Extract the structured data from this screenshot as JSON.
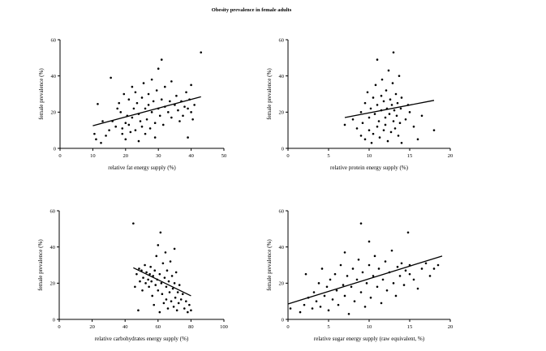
{
  "figure_title": "Obesity prevalence in female adults",
  "chart_data": [
    {
      "type": "scatter",
      "xlabel": "relative fat energy supply (%)",
      "ylabel": "female prevalence (%)",
      "xlim": [
        0,
        50
      ],
      "ylim": [
        0,
        60
      ],
      "xticks": [
        0,
        10,
        20,
        30,
        40,
        50
      ],
      "yticks": [
        0,
        20,
        40,
        60
      ],
      "fit_line": {
        "x": [
          10,
          43
        ],
        "y": [
          12.5,
          28.5
        ]
      },
      "points": [
        [
          10.5,
          8
        ],
        [
          11,
          5
        ],
        [
          11.5,
          24.5
        ],
        [
          12.5,
          3
        ],
        [
          13,
          15
        ],
        [
          14,
          7
        ],
        [
          15,
          10
        ],
        [
          15.5,
          39
        ],
        [
          16,
          15
        ],
        [
          17,
          12
        ],
        [
          17.5,
          22
        ],
        [
          18,
          25
        ],
        [
          18.5,
          20
        ],
        [
          19,
          11
        ],
        [
          19,
          8
        ],
        [
          19.5,
          30
        ],
        [
          20,
          14
        ],
        [
          20,
          5
        ],
        [
          20.5,
          18
        ],
        [
          21,
          13
        ],
        [
          21,
          27
        ],
        [
          21.5,
          9
        ],
        [
          22,
          17
        ],
        [
          22,
          34
        ],
        [
          22.5,
          22
        ],
        [
          23,
          10
        ],
        [
          23,
          31
        ],
        [
          23.5,
          25
        ],
        [
          24,
          19
        ],
        [
          24,
          4
        ],
        [
          24.5,
          15
        ],
        [
          25,
          28
        ],
        [
          25,
          12
        ],
        [
          25.5,
          36
        ],
        [
          26,
          22
        ],
        [
          26,
          8
        ],
        [
          26.5,
          16
        ],
        [
          27,
          30
        ],
        [
          27,
          24
        ],
        [
          27.5,
          11
        ],
        [
          28,
          20
        ],
        [
          28,
          38
        ],
        [
          28.5,
          26
        ],
        [
          29,
          14
        ],
        [
          29,
          6
        ],
        [
          29.5,
          32
        ],
        [
          30,
          22
        ],
        [
          30,
          44
        ],
        [
          30.5,
          18
        ],
        [
          31,
          27
        ],
        [
          31,
          49
        ],
        [
          31.5,
          13
        ],
        [
          32,
          23
        ],
        [
          32,
          34
        ],
        [
          33,
          20
        ],
        [
          33.5,
          26
        ],
        [
          34,
          17
        ],
        [
          34,
          37
        ],
        [
          35,
          24
        ],
        [
          35.5,
          29
        ],
        [
          36,
          21
        ],
        [
          36.5,
          15
        ],
        [
          37,
          26
        ],
        [
          37.5,
          18
        ],
        [
          38,
          23
        ],
        [
          38.5,
          31
        ],
        [
          39,
          22
        ],
        [
          39,
          6
        ],
        [
          39.5,
          27
        ],
        [
          40,
          20
        ],
        [
          40,
          35
        ],
        [
          40.5,
          16
        ],
        [
          41,
          24
        ],
        [
          43,
          53
        ]
      ]
    },
    {
      "type": "scatter",
      "xlabel": "relative protein energy supply (%)",
      "ylabel": "female prevalence (%)",
      "xlim": [
        0,
        20
      ],
      "ylim": [
        0,
        60
      ],
      "xticks": [
        0,
        5,
        10,
        15,
        20
      ],
      "yticks": [
        0,
        20,
        40,
        60
      ],
      "fit_line": {
        "x": [
          7,
          18
        ],
        "y": [
          17,
          26.5
        ]
      },
      "points": [
        [
          7,
          13
        ],
        [
          8,
          16
        ],
        [
          8.5,
          11
        ],
        [
          9,
          7
        ],
        [
          9,
          20
        ],
        [
          9.2,
          14
        ],
        [
          9.5,
          5
        ],
        [
          9.5,
          25
        ],
        [
          9.8,
          31
        ],
        [
          10,
          10
        ],
        [
          10,
          17
        ],
        [
          10.2,
          22
        ],
        [
          10.3,
          3
        ],
        [
          10.5,
          28
        ],
        [
          10.5,
          8
        ],
        [
          10.7,
          19
        ],
        [
          10.8,
          35
        ],
        [
          11,
          12
        ],
        [
          11,
          24
        ],
        [
          11,
          49
        ],
        [
          11.2,
          15
        ],
        [
          11.3,
          6
        ],
        [
          11.5,
          21
        ],
        [
          11.5,
          29
        ],
        [
          11.6,
          38
        ],
        [
          11.8,
          10
        ],
        [
          11.8,
          26
        ],
        [
          12,
          17
        ],
        [
          12,
          13
        ],
        [
          12.1,
          32
        ],
        [
          12.2,
          22
        ],
        [
          12.3,
          4
        ],
        [
          12.4,
          43
        ],
        [
          12.5,
          19
        ],
        [
          12.6,
          27
        ],
        [
          12.7,
          9
        ],
        [
          12.8,
          24
        ],
        [
          12.9,
          36
        ],
        [
          13,
          15
        ],
        [
          13,
          53
        ],
        [
          13.1,
          21
        ],
        [
          13.2,
          11
        ],
        [
          13.3,
          30
        ],
        [
          13.4,
          18
        ],
        [
          13.5,
          25
        ],
        [
          13.6,
          7
        ],
        [
          13.7,
          40
        ],
        [
          13.8,
          14
        ],
        [
          13.9,
          22
        ],
        [
          14,
          28
        ],
        [
          14,
          3
        ],
        [
          14.5,
          16
        ],
        [
          14.8,
          24
        ],
        [
          15,
          20
        ],
        [
          15.5,
          12
        ],
        [
          16,
          5
        ],
        [
          16.5,
          18
        ],
        [
          18,
          10
        ]
      ]
    },
    {
      "type": "scatter",
      "xlabel": "relative carbohydrates  energy supply (%)",
      "ylabel": "female prevalence (%)",
      "xlim": [
        0,
        100
      ],
      "ylim": [
        0,
        60
      ],
      "xticks": [
        0,
        20,
        40,
        60,
        80,
        100
      ],
      "yticks": [
        0,
        20,
        40,
        60
      ],
      "fit_line": {
        "x": [
          45,
          80
        ],
        "y": [
          28.5,
          13
        ]
      },
      "points": [
        [
          45,
          53
        ],
        [
          46,
          18
        ],
        [
          47,
          25
        ],
        [
          48,
          5
        ],
        [
          48.5,
          28
        ],
        [
          49,
          21
        ],
        [
          50,
          27
        ],
        [
          50.5,
          16
        ],
        [
          51,
          23
        ],
        [
          52,
          30
        ],
        [
          52.5,
          20
        ],
        [
          53,
          26
        ],
        [
          54,
          22
        ],
        [
          54.5,
          18
        ],
        [
          55,
          25
        ],
        [
          55.5,
          29
        ],
        [
          56,
          21
        ],
        [
          56.5,
          13
        ],
        [
          57,
          24
        ],
        [
          57.5,
          8
        ],
        [
          58,
          27
        ],
        [
          58.5,
          19
        ],
        [
          59,
          35
        ],
        [
          59.5,
          22
        ],
        [
          60,
          16
        ],
        [
          60,
          41
        ],
        [
          61,
          25
        ],
        [
          61,
          4
        ],
        [
          61.5,
          48
        ],
        [
          62,
          20
        ],
        [
          62.5,
          14
        ],
        [
          63,
          31
        ],
        [
          63.5,
          9
        ],
        [
          64,
          23
        ],
        [
          64.5,
          37
        ],
        [
          65,
          18
        ],
        [
          65,
          11
        ],
        [
          65.5,
          27
        ],
        [
          66,
          6
        ],
        [
          66.5,
          21
        ],
        [
          67,
          15
        ],
        [
          67.5,
          32
        ],
        [
          68,
          10
        ],
        [
          68.5,
          24
        ],
        [
          69,
          17
        ],
        [
          69.5,
          7
        ],
        [
          70,
          20
        ],
        [
          70,
          39
        ],
        [
          70.5,
          12
        ],
        [
          71,
          26
        ],
        [
          71.5,
          5
        ],
        [
          72,
          15
        ],
        [
          72.5,
          9
        ],
        [
          73,
          19
        ],
        [
          74,
          11
        ],
        [
          75,
          14
        ],
        [
          76,
          6
        ],
        [
          77,
          10
        ],
        [
          78,
          4
        ],
        [
          79,
          8
        ],
        [
          80,
          5
        ]
      ]
    },
    {
      "type": "scatter",
      "xlabel": "relative sugar energy supply (raw equivalent, %)",
      "ylabel": "female prevalence (%)",
      "xlim": [
        0,
        20
      ],
      "ylim": [
        0,
        60
      ],
      "xticks": [
        0,
        5,
        10,
        15,
        20
      ],
      "yticks": [
        0,
        20,
        40,
        60
      ],
      "fit_line": {
        "x": [
          0,
          19
        ],
        "y": [
          8.5,
          35
        ]
      },
      "points": [
        [
          0.3,
          6
        ],
        [
          1.5,
          4
        ],
        [
          2,
          8
        ],
        [
          2.2,
          25
        ],
        [
          2.5,
          12
        ],
        [
          3,
          6
        ],
        [
          3.2,
          15
        ],
        [
          3.5,
          10
        ],
        [
          3.8,
          20
        ],
        [
          4,
          7
        ],
        [
          4.2,
          28
        ],
        [
          4.5,
          13
        ],
        [
          4.8,
          18
        ],
        [
          5,
          5
        ],
        [
          5.2,
          22
        ],
        [
          5.5,
          11
        ],
        [
          5.8,
          25
        ],
        [
          6,
          16
        ],
        [
          6.2,
          8
        ],
        [
          6.5,
          30
        ],
        [
          6.8,
          19
        ],
        [
          7,
          13
        ],
        [
          7,
          37
        ],
        [
          7.3,
          24
        ],
        [
          7.5,
          3
        ],
        [
          7.8,
          18
        ],
        [
          8,
          28
        ],
        [
          8.2,
          10
        ],
        [
          8.5,
          22
        ],
        [
          8.7,
          33
        ],
        [
          9,
          15
        ],
        [
          9,
          53
        ],
        [
          9.2,
          26
        ],
        [
          9.5,
          7
        ],
        [
          9.7,
          20
        ],
        [
          10,
          30
        ],
        [
          10,
          43
        ],
        [
          10.2,
          12
        ],
        [
          10.5,
          24
        ],
        [
          10.7,
          35
        ],
        [
          11,
          18
        ],
        [
          11.2,
          28
        ],
        [
          11.5,
          9
        ],
        [
          11.7,
          22
        ],
        [
          12,
          32
        ],
        [
          12.2,
          16
        ],
        [
          12.5,
          26
        ],
        [
          12.8,
          38
        ],
        [
          13,
          20
        ],
        [
          13.3,
          13
        ],
        [
          13.5,
          29
        ],
        [
          13.8,
          24
        ],
        [
          14,
          31
        ],
        [
          14.3,
          19
        ],
        [
          14.5,
          27
        ],
        [
          14.8,
          48
        ],
        [
          15,
          30
        ],
        [
          15,
          25
        ],
        [
          15.5,
          22
        ],
        [
          16,
          17
        ],
        [
          16.5,
          28
        ],
        [
          17,
          31
        ],
        [
          17.5,
          24
        ],
        [
          18,
          28
        ],
        [
          18.5,
          30
        ]
      ]
    }
  ]
}
